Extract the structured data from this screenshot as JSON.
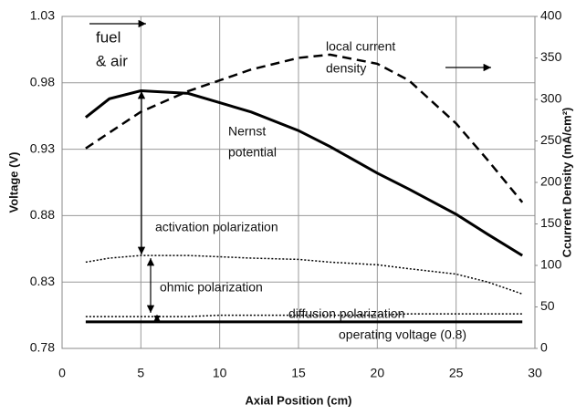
{
  "chart_data": {
    "type": "line",
    "x_label": "Axial Position (cm)",
    "y_label": "Voltage (V)",
    "y2_label": "Ccurrent Density (mA/cm²)",
    "xlim": [
      0,
      30
    ],
    "xticks": [
      0,
      5,
      10,
      15,
      20,
      25,
      30
    ],
    "ylim": [
      0.78,
      1.03
    ],
    "yticks": [
      0.78,
      0.83,
      0.88,
      0.93,
      0.98,
      1.03
    ],
    "y2lim": [
      0,
      400
    ],
    "y2ticks": [
      0,
      50,
      100,
      150,
      200,
      250,
      300,
      350,
      400
    ],
    "grid": true,
    "x": [
      1.5,
      3,
      5,
      8,
      10,
      12,
      15,
      17,
      20,
      22,
      25,
      27,
      29.2
    ],
    "series": [
      {
        "color": "#000000",
        "style": "solid",
        "width": 3,
        "values": [
          0.954,
          0.968,
          0.974,
          0.972,
          0.965,
          0.958,
          0.944,
          0.932,
          0.912,
          0.9,
          0.881,
          0.866,
          0.85
        ]
      },
      {
        "color": "#000000",
        "style": "dashed",
        "width": 2.5,
        "axis": "y2",
        "values": [
          241,
          260,
          285,
          310,
          323,
          336,
          350,
          354,
          343,
          323,
          271,
          227,
          176
        ]
      },
      {
        "color": "#000000",
        "style": "dotted",
        "width": 1.5,
        "values": [
          0.845,
          0.848,
          0.85,
          0.85,
          0.849,
          0.848,
          0.847,
          0.845,
          0.843,
          0.84,
          0.836,
          0.83,
          0.821
        ]
      },
      {
        "color": "#000000",
        "style": "dotted",
        "width": 1.5,
        "values": [
          0.804,
          0.804,
          0.804,
          0.804,
          0.805,
          0.805,
          0.805,
          0.805,
          0.805,
          0.806,
          0.806,
          0.806,
          0.806
        ]
      },
      {
        "color": "#000000",
        "style": "solid",
        "width": 3,
        "values": [
          0.8,
          0.8,
          0.8,
          0.8,
          0.8,
          0.8,
          0.8,
          0.8,
          0.8,
          0.8,
          0.8,
          0.8,
          0.8
        ]
      }
    ],
    "annotations": [
      "fuel",
      "& air",
      "local current",
      "density",
      "Nernst",
      "potential",
      "activation polarization",
      "ohmic polarization",
      "diffusion polarization",
      "operating voltage (0.8)"
    ]
  }
}
